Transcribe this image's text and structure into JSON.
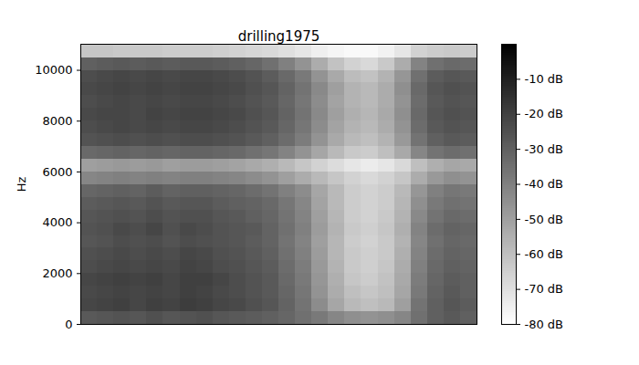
{
  "chart_data": {
    "type": "spectrogram",
    "title": "drilling1975",
    "y_label": "Hz",
    "ylim": [
      0,
      11025
    ],
    "yticks": [
      0,
      2000,
      4000,
      6000,
      8000,
      10000
    ],
    "tick_labels": "y",
    "freq_bins": [
      0,
      500,
      1000,
      1500,
      2000,
      2500,
      3000,
      3500,
      4000,
      4500,
      5000,
      5500,
      6000,
      6500,
      7000,
      7500,
      8000,
      8500,
      9000,
      9500,
      10000,
      10500,
      11025
    ],
    "cells": [
      [
        -28,
        -27,
        -26,
        -27,
        -25,
        -27,
        -26,
        -25,
        -27,
        -28,
        -29,
        -30,
        -32,
        -35,
        -38,
        -42,
        -45,
        -46,
        -45,
        -42,
        -35,
        -30,
        -28,
        -30
      ],
      [
        -22,
        -21,
        -20,
        -22,
        -20,
        -21,
        -19,
        -20,
        -22,
        -23,
        -25,
        -27,
        -31,
        -36,
        -44,
        -52,
        -58,
        -60,
        -58,
        -50,
        -36,
        -30,
        -27,
        -29
      ],
      [
        -23,
        -22,
        -21,
        -22,
        -21,
        -22,
        -20,
        -21,
        -23,
        -24,
        -26,
        -28,
        -32,
        -37,
        -46,
        -54,
        -60,
        -62,
        -60,
        -52,
        -38,
        -31,
        -28,
        -30
      ],
      [
        -22,
        -21,
        -20,
        -21,
        -20,
        -22,
        -20,
        -20,
        -22,
        -24,
        -26,
        -28,
        -33,
        -38,
        -47,
        -55,
        -62,
        -64,
        -61,
        -53,
        -39,
        -32,
        -29,
        -30
      ],
      [
        -24,
        -23,
        -22,
        -23,
        -22,
        -23,
        -21,
        -22,
        -24,
        -25,
        -27,
        -29,
        -34,
        -39,
        -48,
        -56,
        -63,
        -65,
        -62,
        -54,
        -40,
        -33,
        -30,
        -31
      ],
      [
        -25,
        -24,
        -23,
        -24,
        -23,
        -24,
        -22,
        -23,
        -25,
        -26,
        -28,
        -30,
        -35,
        -40,
        -49,
        -57,
        -63,
        -65,
        -63,
        -55,
        -41,
        -34,
        -31,
        -32
      ],
      [
        -27,
        -26,
        -24,
        -25,
        -24,
        -26,
        -24,
        -25,
        -26,
        -27,
        -29,
        -31,
        -36,
        -41,
        -50,
        -57,
        -64,
        -66,
        -63,
        -56,
        -42,
        -35,
        -32,
        -33
      ],
      [
        -26,
        -25,
        -23,
        -24,
        -22,
        -25,
        -23,
        -24,
        -26,
        -27,
        -28,
        -31,
        -35,
        -40,
        -49,
        -56,
        -63,
        -65,
        -62,
        -55,
        -41,
        -34,
        -31,
        -32
      ],
      [
        -27,
        -26,
        -25,
        -26,
        -24,
        -26,
        -25,
        -25,
        -27,
        -28,
        -30,
        -32,
        -36,
        -41,
        -50,
        -57,
        -64,
        -66,
        -63,
        -56,
        -43,
        -36,
        -33,
        -34
      ],
      [
        -29,
        -28,
        -27,
        -28,
        -26,
        -28,
        -27,
        -27,
        -29,
        -30,
        -31,
        -33,
        -37,
        -42,
        -51,
        -58,
        -64,
        -66,
        -64,
        -57,
        -45,
        -38,
        -35,
        -36
      ],
      [
        -32,
        -31,
        -30,
        -31,
        -29,
        -31,
        -30,
        -30,
        -31,
        -32,
        -34,
        -36,
        -40,
        -44,
        -52,
        -58,
        -64,
        -66,
        -64,
        -58,
        -47,
        -40,
        -37,
        -38
      ],
      [
        -42,
        -41,
        -40,
        -41,
        -40,
        -41,
        -40,
        -40,
        -41,
        -42,
        -44,
        -46,
        -50,
        -54,
        -58,
        -62,
        -66,
        -68,
        -66,
        -62,
        -54,
        -48,
        -45,
        -46
      ],
      [
        -50,
        -49,
        -48,
        -49,
        -48,
        -50,
        -49,
        -49,
        -50,
        -51,
        -53,
        -55,
        -58,
        -62,
        -66,
        -69,
        -72,
        -74,
        -72,
        -68,
        -60,
        -55,
        -52,
        -53
      ],
      [
        -33,
        -32,
        -31,
        -32,
        -31,
        -32,
        -31,
        -31,
        -32,
        -33,
        -35,
        -37,
        -41,
        -46,
        -52,
        -58,
        -63,
        -64,
        -60,
        -53,
        -42,
        -36,
        -34,
        -35
      ],
      [
        -26,
        -25,
        -24,
        -25,
        -24,
        -25,
        -24,
        -24,
        -25,
        -26,
        -28,
        -30,
        -34,
        -39,
        -46,
        -53,
        -58,
        -60,
        -56,
        -48,
        -36,
        -30,
        -28,
        -29
      ],
      [
        -24,
        -23,
        -22,
        -23,
        -22,
        -23,
        -22,
        -22,
        -23,
        -24,
        -26,
        -28,
        -32,
        -37,
        -44,
        -51,
        -56,
        -58,
        -54,
        -46,
        -34,
        -28,
        -26,
        -27
      ],
      [
        -23,
        -22,
        -22,
        -23,
        -21,
        -22,
        -21,
        -21,
        -22,
        -23,
        -25,
        -27,
        -31,
        -36,
        -43,
        -50,
        -55,
        -57,
        -53,
        -45,
        -33,
        -27,
        -25,
        -26
      ],
      [
        -24,
        -23,
        -22,
        -23,
        -22,
        -23,
        -22,
        -22,
        -23,
        -24,
        -26,
        -28,
        -32,
        -37,
        -44,
        -51,
        -56,
        -58,
        -54,
        -46,
        -34,
        -28,
        -26,
        -27
      ],
      [
        -23,
        -22,
        -21,
        -22,
        -21,
        -22,
        -21,
        -21,
        -22,
        -23,
        -25,
        -27,
        -31,
        -36,
        -43,
        -50,
        -56,
        -58,
        -54,
        -45,
        -33,
        -27,
        -25,
        -26
      ],
      [
        -24,
        -23,
        -22,
        -23,
        -22,
        -23,
        -22,
        -22,
        -23,
        -24,
        -26,
        -29,
        -33,
        -38,
        -46,
        -53,
        -59,
        -61,
        -56,
        -47,
        -35,
        -29,
        -27,
        -28
      ],
      [
        -30,
        -29,
        -28,
        -29,
        -28,
        -29,
        -28,
        -28,
        -29,
        -30,
        -32,
        -35,
        -40,
        -46,
        -54,
        -61,
        -66,
        -68,
        -63,
        -54,
        -41,
        -35,
        -33,
        -34
      ],
      [
        -62,
        -62,
        -63,
        -63,
        -63,
        -64,
        -64,
        -64,
        -65,
        -66,
        -67,
        -68,
        -70,
        -72,
        -75,
        -77,
        -78,
        -78,
        -76,
        -72,
        -66,
        -64,
        -63,
        -64
      ]
    ],
    "colorbar": {
      "range": [
        -80,
        0
      ],
      "ticks": [
        {
          "value": -10,
          "label": "-10 dB"
        },
        {
          "value": -20,
          "label": "-20 dB"
        },
        {
          "value": -30,
          "label": "-30 dB"
        },
        {
          "value": -40,
          "label": "-40 dB"
        },
        {
          "value": -50,
          "label": "-50 dB"
        },
        {
          "value": -60,
          "label": "-60 dB"
        },
        {
          "value": -70,
          "label": "-70 dB"
        },
        {
          "value": -80,
          "label": "-80 dB"
        }
      ],
      "colors": [
        "#ffffff",
        "#000000"
      ]
    }
  }
}
